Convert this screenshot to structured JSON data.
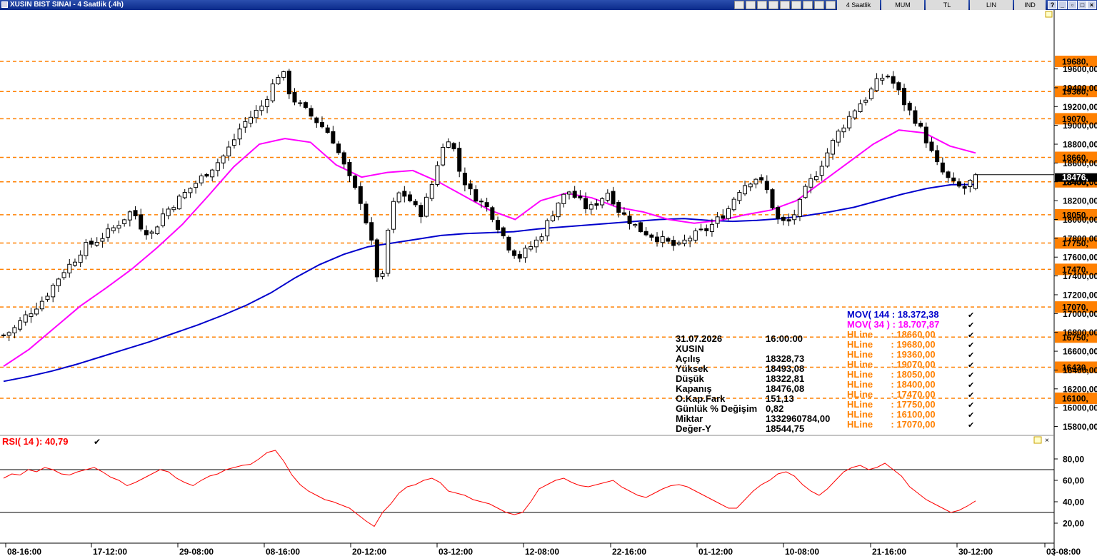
{
  "window": {
    "title": "XUSIN BIST SINAI - 4 Saatlik (.4h)",
    "toolbar": [
      "4 Saatlik",
      "MUM",
      "TL",
      "LIN",
      "IND"
    ]
  },
  "colors": {
    "hline": "#ff8000",
    "mov144": "#0000cc",
    "mov34": "#ff00ff",
    "rsi": "#ff0000",
    "candle": "#000000"
  },
  "chart_data": [
    {
      "type": "candlestick",
      "ylim": [
        15700,
        20300
      ],
      "y_ticks": [
        "19600,00",
        "19400,00",
        "19200,00",
        "19000,00",
        "18800,00",
        "18600,00",
        "18400,00",
        "18200,00",
        "18000,00",
        "17800,00",
        "17600,00",
        "17400,00",
        "17200,00",
        "17000,00",
        "16800,00",
        "16600,00",
        "16400,00",
        "16200,00",
        "16000,00",
        "15800,00"
      ],
      "x_tick_labels": [
        "08-16:00",
        "17-12:00",
        "29-08:00",
        "08-16:00",
        "20-12:00",
        "03-12:00",
        "12-08:00",
        "22-16:00",
        "01-12:00",
        "10-08:00",
        "21-16:00",
        "30-12:00",
        "03-08:00"
      ],
      "last_price_label": "18476,",
      "hlines": [
        {
          "value": 19680,
          "label": "19680,"
        },
        {
          "value": 19360,
          "label": "19360,"
        },
        {
          "value": 19070,
          "label": "19070,"
        },
        {
          "value": 18660,
          "label": "18660,"
        },
        {
          "value": 18400,
          "label": "18400,"
        },
        {
          "value": 18050,
          "label": "18050,"
        },
        {
          "value": 17750,
          "label": "17750,"
        },
        {
          "value": 17470,
          "label": "17470,"
        },
        {
          "value": 17070,
          "label": "17070,"
        },
        {
          "value": 16750,
          "label": "16750,"
        },
        {
          "value": 16430,
          "label": "16430,"
        },
        {
          "value": 16100,
          "label": "16100,"
        }
      ],
      "close_path": [
        16770,
        16830,
        16950,
        17050,
        17150,
        17300,
        17450,
        17550,
        17700,
        17750,
        17820,
        17900,
        18000,
        18100,
        17900,
        17850,
        18050,
        18150,
        18250,
        18350,
        18450,
        18550,
        18650,
        18800,
        19000,
        19100,
        19200,
        19400,
        19600,
        19300,
        19200,
        19100,
        19000,
        18900,
        18650,
        18400,
        18200,
        17800,
        17200,
        18100,
        18300,
        18200,
        18050,
        18300,
        18700,
        18900,
        18500,
        18300,
        18200,
        18100,
        17900,
        17700,
        17600,
        17700,
        17800,
        18000,
        18200,
        18300,
        18200,
        18100,
        18200,
        18300,
        18100,
        18000,
        17900,
        17850,
        17800,
        17750,
        17700,
        17800,
        17850,
        17900,
        18000,
        18100,
        18300,
        18400,
        18450,
        18300,
        18000,
        17950,
        18100,
        18350,
        18500,
        18700,
        18900,
        19050,
        19200,
        19300,
        19450,
        19550,
        19400,
        19200,
        19050,
        18850,
        18600,
        18450,
        18350,
        18330,
        18476
      ],
      "series": [
        {
          "name": "MOV( 144 : 18.372,38",
          "type": "line",
          "values": [
            16280,
            16330,
            16390,
            16460,
            16540,
            16620,
            16700,
            16790,
            16880,
            16980,
            17090,
            17220,
            17380,
            17520,
            17630,
            17710,
            17750,
            17790,
            17830,
            17850,
            17860,
            17870,
            17900,
            17920,
            17940,
            17960,
            17980,
            18000,
            18010,
            17990,
            17980,
            17990,
            18010,
            18040,
            18080,
            18130,
            18200,
            18270,
            18330,
            18370,
            18372
          ]
        },
        {
          "name": "MOV( 34 ) : 18.707,87",
          "type": "line",
          "values": [
            16440,
            16620,
            16850,
            17080,
            17270,
            17470,
            17700,
            17950,
            18250,
            18560,
            18800,
            18860,
            18820,
            18580,
            18450,
            18500,
            18520,
            18400,
            18250,
            18100,
            18000,
            18200,
            18280,
            18230,
            18130,
            18080,
            18000,
            17960,
            17990,
            18050,
            18100,
            18200,
            18400,
            18600,
            18800,
            18950,
            18920,
            18780,
            18707
          ]
        }
      ]
    },
    {
      "type": "line",
      "name": "RSI( 14 ): 40,79",
      "ylim": [
        10,
        100
      ],
      "y_ticks": [
        "80,00",
        "60,00",
        "40,00",
        "20,00"
      ],
      "levels": [
        70,
        30
      ],
      "values": [
        62,
        66,
        65,
        70,
        68,
        72,
        70,
        66,
        65,
        68,
        70,
        72,
        68,
        63,
        60,
        55,
        58,
        62,
        66,
        70,
        68,
        62,
        58,
        55,
        60,
        64,
        66,
        70,
        72,
        74,
        75,
        80,
        86,
        88,
        78,
        65,
        56,
        50,
        46,
        42,
        40,
        37,
        34,
        28,
        22,
        17,
        30,
        38,
        48,
        54,
        56,
        60,
        62,
        58,
        50,
        48,
        46,
        42,
        40,
        38,
        34,
        30,
        28,
        30,
        40,
        52,
        56,
        60,
        62,
        58,
        55,
        54,
        56,
        58,
        60,
        54,
        50,
        46,
        44,
        48,
        52,
        55,
        56,
        54,
        50,
        46,
        42,
        38,
        34,
        34,
        42,
        50,
        56,
        60,
        66,
        68,
        64,
        56,
        50,
        46,
        52,
        60,
        68,
        72,
        74,
        70,
        72,
        76,
        70,
        64,
        54,
        48,
        42,
        38,
        34,
        30,
        32,
        36,
        40.79
      ]
    }
  ],
  "info_panel": {
    "date": "31.07.2026",
    "time": "16:00:00",
    "symbol": "XUSIN",
    "rows": [
      {
        "label": "Açılış",
        "value": "18328,73"
      },
      {
        "label": "Yüksek",
        "value": "18493,08"
      },
      {
        "label": "Düşük",
        "value": "18322,81"
      },
      {
        "label": "Kapanış",
        "value": "18476,08"
      },
      {
        "label": "O.Kap.Fark",
        "value": "151,13"
      },
      {
        "label": "Günlük % Değişim",
        "value": "0,82"
      },
      {
        "label": "Miktar",
        "value": "1332960784,00"
      },
      {
        "label": "Değer-Y",
        "value": "18544,75"
      }
    ]
  },
  "legend": [
    {
      "label": "MOV( 144 : 18.372,38",
      "color": "#0000cc"
    },
    {
      "label": "MOV( 34 ) : 18.707,87",
      "color": "#ff00ff"
    },
    {
      "label": "HLine       : 18660,00",
      "color": "#ff8000"
    },
    {
      "label": "HLine       : 19680,00",
      "color": "#ff8000"
    },
    {
      "label": "HLine       : 19360,00",
      "color": "#ff8000"
    },
    {
      "label": "HLine       : 19070,00",
      "color": "#ff8000"
    },
    {
      "label": "HLine       : 18050,00",
      "color": "#ff8000"
    },
    {
      "label": "HLine       : 18400,00",
      "color": "#ff8000"
    },
    {
      "label": "HLine       : 17470,00",
      "color": "#ff8000"
    },
    {
      "label": "HLine       : 17750,00",
      "color": "#ff8000"
    },
    {
      "label": "HLine       : 16100,00",
      "color": "#ff8000"
    },
    {
      "label": "HLine       : 17070,00",
      "color": "#ff8000"
    },
    {
      "label": "HLine       : 16750,00",
      "color": "#ff8000"
    }
  ]
}
